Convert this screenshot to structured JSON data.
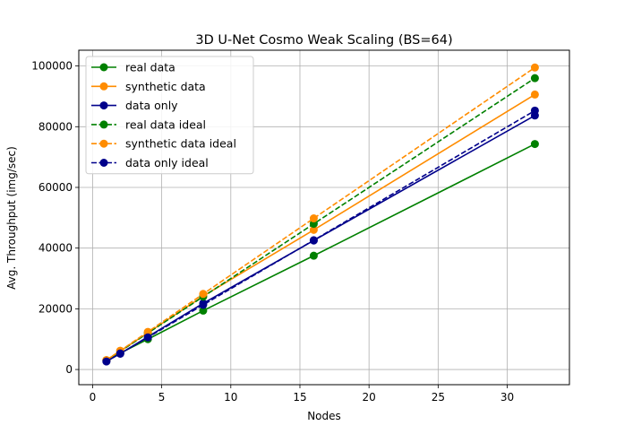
{
  "chart_data": {
    "type": "line",
    "title": "3D U-Net Cosmo Weak Scaling (BS=64)",
    "xlabel": "Nodes",
    "ylabel": "Avg. Throughput (img/sec)",
    "xlim": [
      -1.0,
      34.5
    ],
    "ylim": [
      -5000,
      105200
    ],
    "xticks": [
      0,
      5,
      10,
      15,
      20,
      25,
      30
    ],
    "yticks": [
      0,
      20000,
      40000,
      60000,
      80000,
      100000
    ],
    "grid": true,
    "legend_position": "top-left",
    "x": [
      1,
      2,
      4,
      8,
      16,
      32
    ],
    "series": [
      {
        "name": "real data",
        "color": "#008000",
        "style": "solid",
        "values": [
          3000,
          5400,
          10000,
          19400,
          37500,
          74300
        ]
      },
      {
        "name": "synthetic data",
        "color": "#ff8c00",
        "style": "solid",
        "values": [
          3100,
          6100,
          12100,
          24200,
          46000,
          90600
        ]
      },
      {
        "name": "data only",
        "color": "#00008b",
        "style": "solid",
        "values": [
          2700,
          5200,
          10800,
          21800,
          42500,
          83700
        ]
      },
      {
        "name": "real data ideal",
        "color": "#008000",
        "style": "dashed",
        "values": [
          3000,
          6000,
          12000,
          24000,
          48000,
          96000
        ]
      },
      {
        "name": "synthetic data ideal",
        "color": "#ff8c00",
        "style": "dashed",
        "values": [
          3100,
          6200,
          12400,
          24900,
          49800,
          99500
        ]
      },
      {
        "name": "data only ideal",
        "color": "#00008b",
        "style": "dashed",
        "values": [
          2650,
          5300,
          10600,
          21300,
          42600,
          85300
        ]
      }
    ]
  }
}
